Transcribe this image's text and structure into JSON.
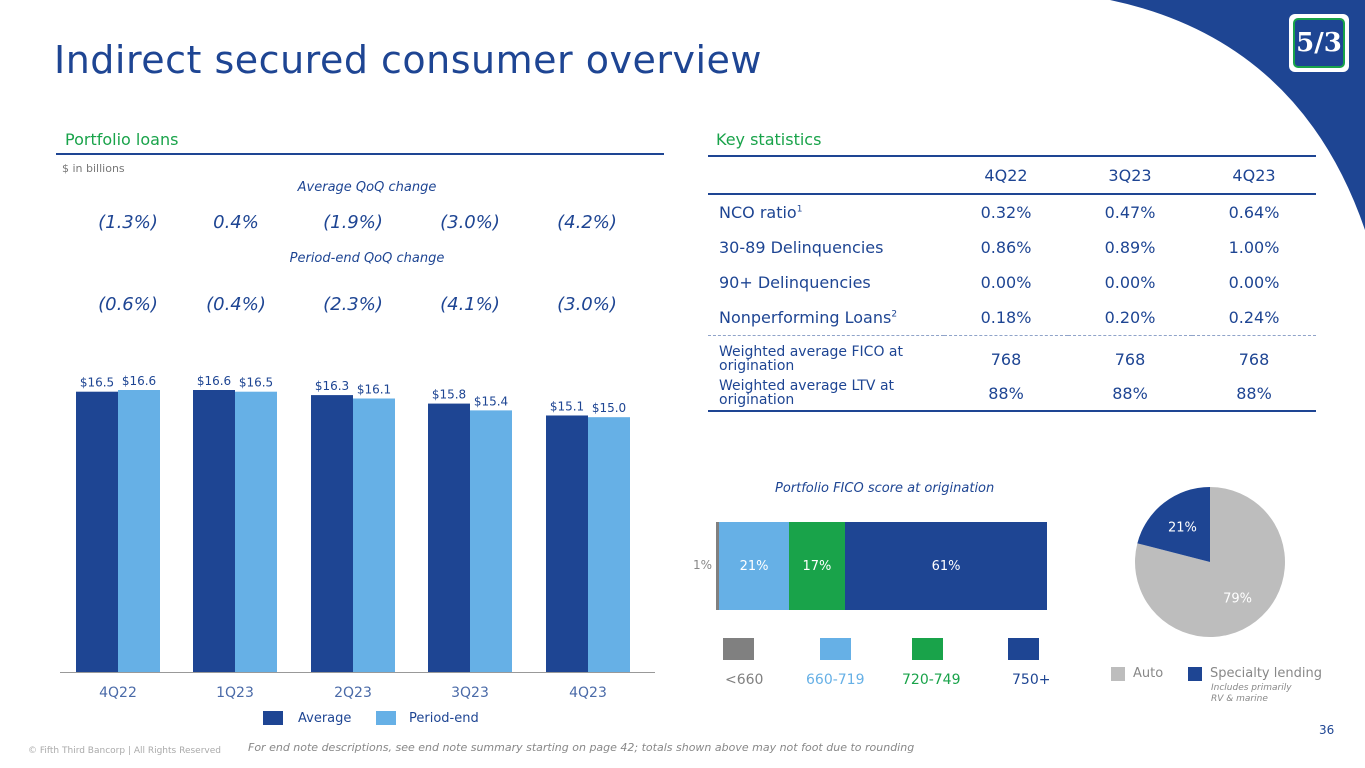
{
  "page": {
    "title": "Indirect secured consumer overview",
    "page_number": "36",
    "logo_text": "5/3",
    "footer_copyright": "© Fifth Third Bancorp | All Rights Reserved",
    "footer_note": "For end note descriptions, see end note summary starting on page 42; totals shown above may not foot due to rounding"
  },
  "colors": {
    "brand_blue": "#1e4593",
    "light_blue": "#66b0e6",
    "green": "#19a34a",
    "gray": "#808080",
    "pie_gray": "#bdbdbd"
  },
  "portfolio": {
    "section_title": "Portfolio loans",
    "unit_note": "$ in billions",
    "avg_qoq_label": "Average QoQ change",
    "avg_qoq": [
      "(1.3%)",
      "0.4%",
      "(1.9%)",
      "(3.0%)",
      "(4.2%)"
    ],
    "pe_qoq_label": "Period-end QoQ change",
    "pe_qoq": [
      "(0.6%)",
      "(0.4%)",
      "(2.3%)",
      "(4.1%)",
      "(3.0%)"
    ],
    "legend": {
      "average": "Average",
      "period_end": "Period-end"
    }
  },
  "key_stats": {
    "section_title": "Key statistics",
    "columns": [
      "4Q22",
      "3Q23",
      "4Q23"
    ],
    "rows": [
      {
        "label": "NCO ratio",
        "sup": "1",
        "values": [
          "0.32%",
          "0.47%",
          "0.64%"
        ]
      },
      {
        "label": "30-89 Delinquencies",
        "sup": "",
        "values": [
          "0.86%",
          "0.89%",
          "1.00%"
        ]
      },
      {
        "label": "90+ Delinquencies",
        "sup": "",
        "values": [
          "0.00%",
          "0.00%",
          "0.00%"
        ]
      },
      {
        "label": "Nonperforming Loans",
        "sup": "2",
        "values": [
          "0.18%",
          "0.20%",
          "0.24%"
        ]
      }
    ],
    "weighted_rows": [
      {
        "label_line1": "Weighted average FICO at",
        "label_line2": "origination",
        "values": [
          "768",
          "768",
          "768"
        ]
      },
      {
        "label_line1": "Weighted average LTV at",
        "label_line2": "origination",
        "values": [
          "88%",
          "88%",
          "88%"
        ]
      }
    ]
  },
  "chart_data": [
    {
      "type": "bar",
      "title": "Portfolio loans",
      "ylabel": "$ in billions",
      "xlabel": "",
      "categories": [
        "4Q22",
        "1Q23",
        "2Q23",
        "3Q23",
        "4Q23"
      ],
      "series": [
        {
          "name": "Average",
          "values": [
            16.5,
            16.6,
            16.3,
            15.8,
            15.1
          ],
          "labels": [
            "$16.5",
            "$16.6",
            "$16.3",
            "$15.8",
            "$15.1"
          ]
        },
        {
          "name": "Period-end",
          "values": [
            16.6,
            16.5,
            16.1,
            15.4,
            15.0
          ],
          "labels": [
            "$16.6",
            "$16.5",
            "$16.1",
            "$15.4",
            "$15.0"
          ]
        }
      ],
      "ylim": [
        0,
        17
      ],
      "grid": false,
      "legend": "bottom"
    },
    {
      "type": "bar",
      "subtype": "stacked-horizontal-100",
      "title": "Portfolio FICO score at origination",
      "categories": [
        "<660",
        "660-719",
        "720-749",
        "750+"
      ],
      "values": [
        1,
        21,
        17,
        61
      ],
      "labels": [
        "1%",
        "21%",
        "17%",
        "61%"
      ],
      "legend": "bottom"
    },
    {
      "type": "pie",
      "categories": [
        "Auto",
        "Specialty lending"
      ],
      "values": [
        79,
        21
      ],
      "labels": [
        "79%",
        "21%"
      ],
      "legend": "bottom",
      "legend_note": [
        "Includes primarily",
        "RV & marine"
      ]
    }
  ]
}
